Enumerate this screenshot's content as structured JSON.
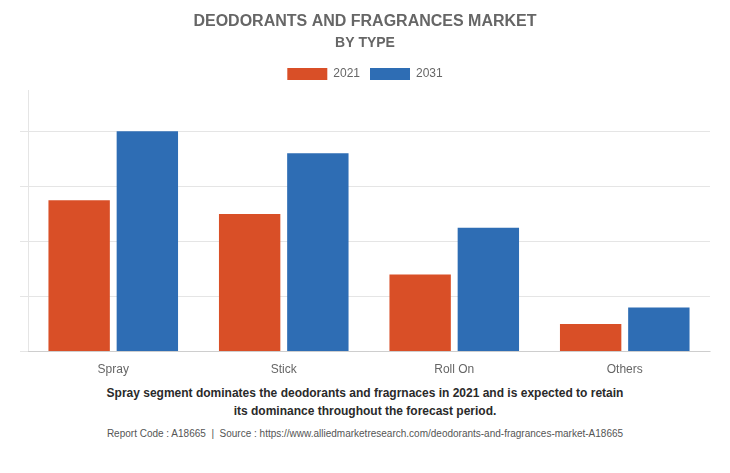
{
  "chart_data": {
    "type": "bar",
    "title": "DEODORANTS AND FRAGRANCES MARKET",
    "subtitle": "BY TYPE",
    "categories": [
      "Spray",
      "Stick",
      "Roll On",
      "Others"
    ],
    "series": [
      {
        "name": "2021",
        "color": "#d94f27",
        "values": [
          55,
          50,
          28,
          10
        ]
      },
      {
        "name": "2031",
        "color": "#2e6db4",
        "values": [
          80,
          72,
          45,
          16
        ]
      }
    ],
    "ylim": [
      0,
      95
    ],
    "yticks": [
      0,
      20,
      40,
      60,
      80
    ],
    "grid": true,
    "legend": "top",
    "tick_labels": "x",
    "annotation": "Spray segment dominates the deodorants and fragrnaces in 2021 and is expected to retain\nits dominance throughout the forecast period.",
    "footer": "Report Code : A18665  |  Source : https://www.alliedmarketresearch.com/deodorants-and-fragrances-market-A18665"
  }
}
